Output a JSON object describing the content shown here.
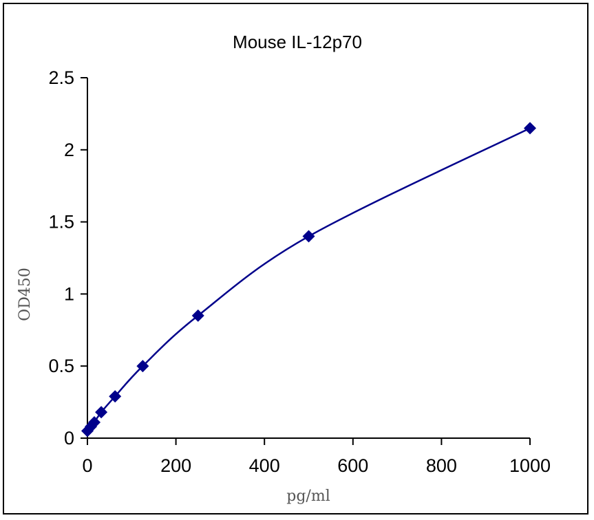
{
  "chart_data": {
    "type": "scatter",
    "title": "Mouse  IL-12p70",
    "xlabel": "pg/ml",
    "ylabel": "OD450",
    "xlim": [
      0,
      1000
    ],
    "ylim": [
      0,
      2.5
    ],
    "xticks": [
      "0",
      "200",
      "400",
      "600",
      "800",
      "1000"
    ],
    "yticks": [
      "0",
      "0.5",
      "1",
      "1.5",
      "2",
      "2.5"
    ],
    "grid": false,
    "marker": "diamond",
    "fit_line": "smooth curve",
    "color": "#00008B",
    "series": [
      {
        "x": [
          0,
          7.8,
          15.6,
          31.25,
          62.5,
          125,
          250,
          500,
          1000
        ],
        "y": [
          0.05,
          0.08,
          0.11,
          0.18,
          0.29,
          0.5,
          0.85,
          1.4,
          2.15
        ]
      }
    ]
  }
}
